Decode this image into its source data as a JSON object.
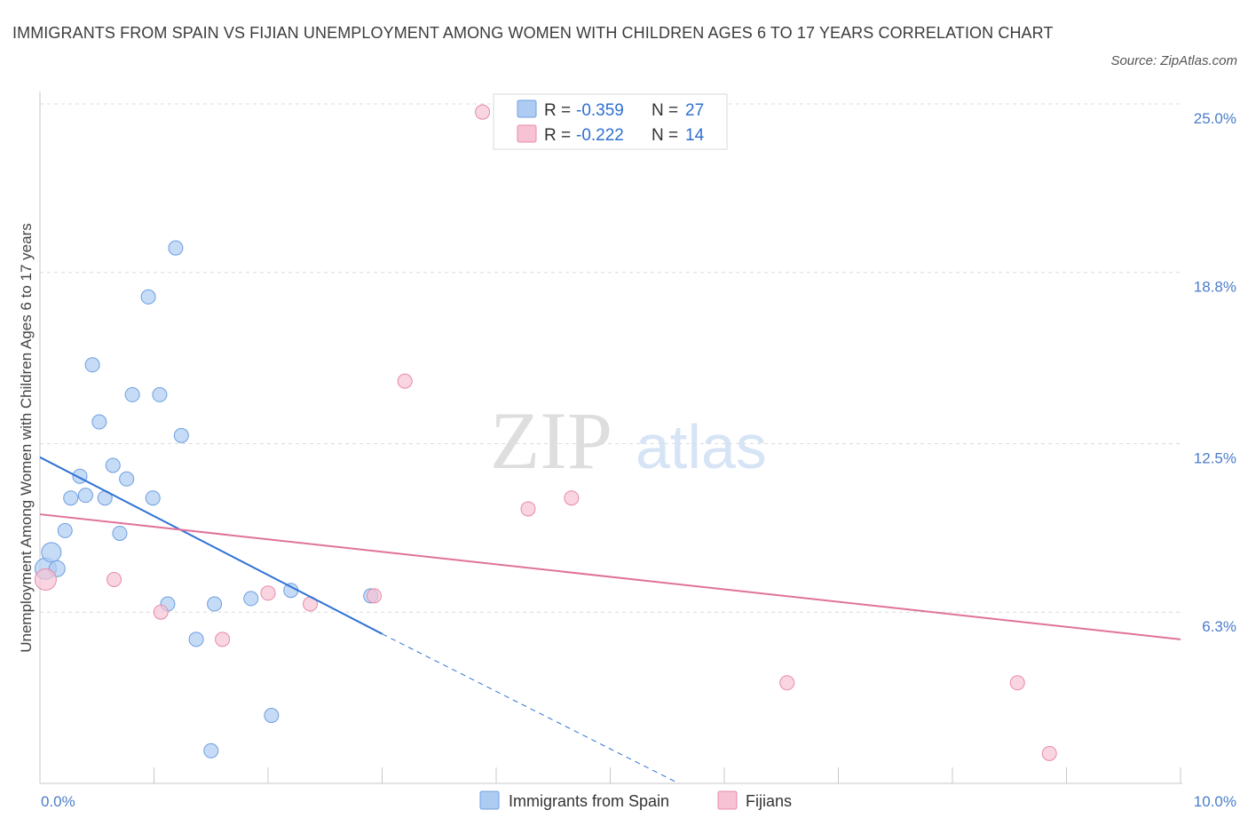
{
  "chart_data": {
    "type": "scatter",
    "title": "IMMIGRANTS FROM SPAIN VS FIJIAN UNEMPLOYMENT AMONG WOMEN WITH CHILDREN AGES 6 TO 17 YEARS CORRELATION CHART",
    "source": "Source: ZipAtlas.com",
    "xlabel": "",
    "ylabel": "Unemployment Among Women with Children Ages 6 to 17 years",
    "xlim": [
      0,
      10
    ],
    "ylim": [
      0,
      25
    ],
    "x_tick_labels": [
      {
        "value": 0,
        "label": "0.0%"
      },
      {
        "value": 10,
        "label": "10.0%"
      }
    ],
    "y_tick_labels": [
      {
        "value": 25.0,
        "label": "25.0%"
      },
      {
        "value": 18.8,
        "label": "18.8%"
      },
      {
        "value": 12.5,
        "label": "12.5%"
      },
      {
        "value": 6.3,
        "label": "6.3%"
      }
    ],
    "gridlines": [
      25.0,
      18.8,
      12.5,
      6.3
    ],
    "watermark": {
      "part1": "ZIP",
      "part2": "atlas"
    },
    "legend": [
      {
        "r_label": "R = ",
        "r_value": "-0.359",
        "n_label": "N = ",
        "n_value": "27"
      },
      {
        "r_label": "R = ",
        "r_value": "-0.222",
        "n_label": "N = ",
        "n_value": "14"
      }
    ],
    "series": [
      {
        "name": "Immigrants from Spain",
        "color": "#aeccf2",
        "stroke": "#6d9fe0",
        "trend_color": "#2f72d6",
        "trend": {
          "x0": 0.0,
          "y0": 12.0,
          "x1": 3.0,
          "y1": 5.5,
          "dash_x1": 5.6,
          "dash_y1": 0.0
        },
        "points": [
          {
            "x": 0.05,
            "y": 7.9,
            "size": 12
          },
          {
            "x": 0.1,
            "y": 8.5,
            "size": 11
          },
          {
            "x": 0.15,
            "y": 7.9,
            "size": 9
          },
          {
            "x": 0.22,
            "y": 9.3,
            "size": 8
          },
          {
            "x": 0.27,
            "y": 10.5,
            "size": 8
          },
          {
            "x": 0.35,
            "y": 11.3,
            "size": 8
          },
          {
            "x": 0.4,
            "y": 10.6,
            "size": 8
          },
          {
            "x": 0.46,
            "y": 15.4,
            "size": 8
          },
          {
            "x": 0.52,
            "y": 13.3,
            "size": 8
          },
          {
            "x": 0.57,
            "y": 10.5,
            "size": 8
          },
          {
            "x": 0.64,
            "y": 11.7,
            "size": 8
          },
          {
            "x": 0.7,
            "y": 9.2,
            "size": 8
          },
          {
            "x": 0.76,
            "y": 11.2,
            "size": 8
          },
          {
            "x": 0.81,
            "y": 14.3,
            "size": 8
          },
          {
            "x": 0.95,
            "y": 17.9,
            "size": 8
          },
          {
            "x": 0.99,
            "y": 10.5,
            "size": 8
          },
          {
            "x": 1.05,
            "y": 14.3,
            "size": 8
          },
          {
            "x": 1.12,
            "y": 6.6,
            "size": 8
          },
          {
            "x": 1.19,
            "y": 19.7,
            "size": 8
          },
          {
            "x": 1.24,
            "y": 12.8,
            "size": 8
          },
          {
            "x": 1.37,
            "y": 5.3,
            "size": 8
          },
          {
            "x": 1.5,
            "y": 1.2,
            "size": 8
          },
          {
            "x": 1.53,
            "y": 6.6,
            "size": 8
          },
          {
            "x": 1.85,
            "y": 6.8,
            "size": 8
          },
          {
            "x": 2.03,
            "y": 2.5,
            "size": 8
          },
          {
            "x": 2.2,
            "y": 7.1,
            "size": 8
          },
          {
            "x": 2.9,
            "y": 6.9,
            "size": 8
          }
        ]
      },
      {
        "name": "Fijians",
        "color": "#f7c3d4",
        "stroke": "#e88aa9",
        "trend_color": "#e0729b",
        "trend": {
          "x0": 0.0,
          "y0": 9.9,
          "x1": 10.0,
          "y1": 5.3
        },
        "points": [
          {
            "x": 0.05,
            "y": 7.5,
            "size": 12
          },
          {
            "x": 0.65,
            "y": 7.5,
            "size": 8
          },
          {
            "x": 1.06,
            "y": 6.3,
            "size": 8
          },
          {
            "x": 1.6,
            "y": 5.3,
            "size": 8
          },
          {
            "x": 2.0,
            "y": 7.0,
            "size": 8
          },
          {
            "x": 2.37,
            "y": 6.6,
            "size": 8
          },
          {
            "x": 2.93,
            "y": 6.9,
            "size": 8
          },
          {
            "x": 3.2,
            "y": 14.8,
            "size": 8
          },
          {
            "x": 3.88,
            "y": 24.7,
            "size": 8
          },
          {
            "x": 4.28,
            "y": 10.1,
            "size": 8
          },
          {
            "x": 4.66,
            "y": 10.5,
            "size": 8
          },
          {
            "x": 6.55,
            "y": 3.7,
            "size": 8
          },
          {
            "x": 8.57,
            "y": 3.7,
            "size": 8
          },
          {
            "x": 8.85,
            "y": 1.1,
            "size": 8
          }
        ]
      }
    ]
  }
}
